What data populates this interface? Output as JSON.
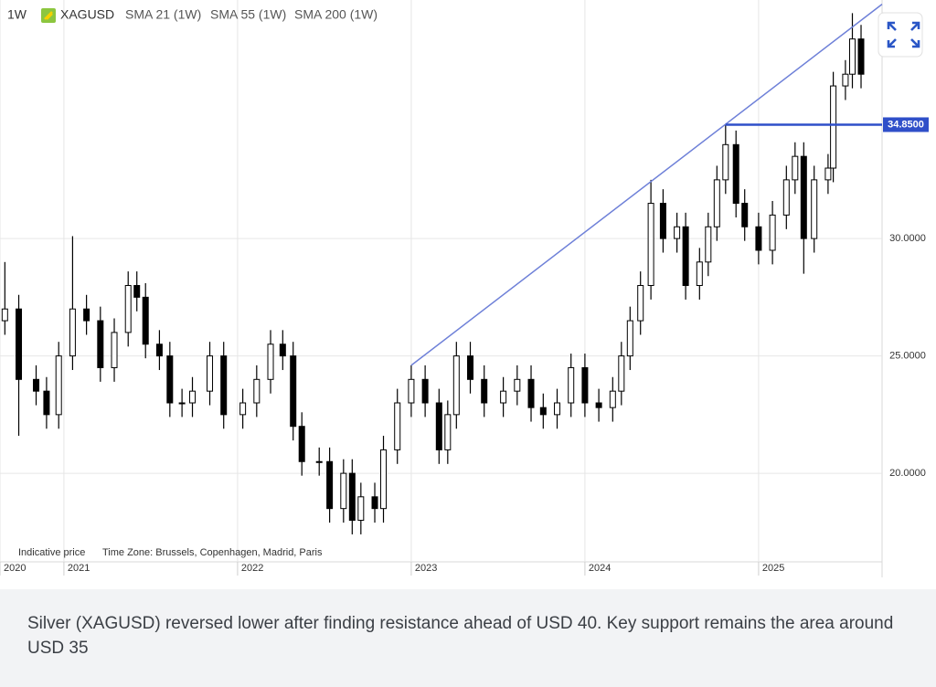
{
  "chart_data": {
    "type": "candlestick",
    "interval": "1W",
    "symbol": "XAGUSD",
    "indicators": [
      "SMA 21 (1W)",
      "SMA 55 (1W)",
      "SMA 200 (1W)"
    ],
    "notes": [
      "Indicative price",
      "Time Zone: Brussels, Copenhagen, Madrid, Paris"
    ],
    "xlim": [
      2020.632,
      2025.711
    ],
    "xticks": [
      {
        "value": 2020.632,
        "label": "2020"
      },
      2021,
      2022,
      2023,
      2024,
      2025
    ],
    "ylim": [
      16.23,
      40.16
    ],
    "yticks": [
      {
        "value": 20,
        "label": "20.0000"
      },
      {
        "value": 25,
        "label": "25.0000"
      },
      {
        "value": 30,
        "label": "30.0000"
      }
    ],
    "grid": true,
    "up_color": "#ffffff",
    "down_color": "#000000",
    "x": [
      2020.66,
      2020.74,
      2020.84,
      2020.9,
      2020.97,
      2021.05,
      2021.13,
      2021.21,
      2021.29,
      2021.37,
      2021.42,
      2021.47,
      2021.55,
      2021.61,
      2021.68,
      2021.74,
      2021.84,
      2021.92,
      2022.03,
      2022.11,
      2022.19,
      2022.26,
      2022.32,
      2022.37,
      2022.47,
      2022.53,
      2022.61,
      2022.66,
      2022.71,
      2022.79,
      2022.84,
      2022.92,
      2023.0,
      2023.08,
      2023.16,
      2023.21,
      2023.26,
      2023.34,
      2023.42,
      2023.53,
      2023.61,
      2023.69,
      2023.76,
      2023.84,
      2023.92,
      2024.0,
      2024.08,
      2024.16,
      2024.21,
      2024.26,
      2024.32,
      2024.38,
      2024.45,
      2024.53,
      2024.58,
      2024.66,
      2024.71,
      2024.76,
      2024.81,
      2024.87,
      2024.92,
      2025.0,
      2025.08,
      2025.16,
      2025.21,
      2025.26,
      2025.32,
      2025.4,
      2025.43,
      2025.5,
      2025.54,
      2025.59
    ],
    "open": [
      26.5,
      27,
      24,
      23.5,
      22.5,
      25,
      27,
      26.5,
      24.5,
      26,
      28,
      27.5,
      25.5,
      25,
      23,
      23,
      23.5,
      25,
      22.5,
      23,
      24,
      25.5,
      25,
      22,
      20.5,
      20.5,
      18.5,
      20,
      18,
      19,
      18.5,
      21,
      23,
      24,
      23,
      21,
      22.5,
      25,
      24,
      23,
      23.5,
      24,
      22.8,
      22.5,
      23,
      24.5,
      23,
      22.8,
      23.5,
      25,
      26.5,
      28,
      31.5,
      30,
      30.5,
      28,
      29,
      30.5,
      32.5,
      34,
      31.5,
      30.5,
      29.5,
      31,
      32.5,
      33.5,
      30,
      32.5,
      33,
      36.5,
      37,
      38.5
    ],
    "high": [
      29,
      27.6,
      24.6,
      24.1,
      25.6,
      30.1,
      27.6,
      27.1,
      26.6,
      28.6,
      28.6,
      28.1,
      26.1,
      25.6,
      23.6,
      24.1,
      25.6,
      25.6,
      23.6,
      24.6,
      26.1,
      26.1,
      25.6,
      22.6,
      21.1,
      21.1,
      20.6,
      20.6,
      19.6,
      19.6,
      21.6,
      23.6,
      24.6,
      24.6,
      23.6,
      23.1,
      25.6,
      25.6,
      24.6,
      24.1,
      24.6,
      24.6,
      23.4,
      23.6,
      25.1,
      25.1,
      23.6,
      24.1,
      25.6,
      27.1,
      28.6,
      32.5,
      32.1,
      31.1,
      31.1,
      29.6,
      31.1,
      33.1,
      34.85,
      34.6,
      32.1,
      31.1,
      31.6,
      33.1,
      34.1,
      34.1,
      33.1,
      33.6,
      37.1,
      37.6,
      39.6,
      39.1
    ],
    "low": [
      25.9,
      21.6,
      22.9,
      21.9,
      21.9,
      24.4,
      25.9,
      23.9,
      23.9,
      25.4,
      26.9,
      24.9,
      24.4,
      22.4,
      22.4,
      22.4,
      22.9,
      21.9,
      21.9,
      22.4,
      23.4,
      24.4,
      21.4,
      19.9,
      19.9,
      17.9,
      17.9,
      17.4,
      17.4,
      17.9,
      17.9,
      20.4,
      22.4,
      22.4,
      20.4,
      20.4,
      21.9,
      23.4,
      22.4,
      22.4,
      22.9,
      22.2,
      21.9,
      21.9,
      22.4,
      22.4,
      22.2,
      22.2,
      22.9,
      24.4,
      25.9,
      27.4,
      29.4,
      29.4,
      27.4,
      27.4,
      28.4,
      29.9,
      31.9,
      30.9,
      29.9,
      28.9,
      28.9,
      30.4,
      31.9,
      28.5,
      29.4,
      31.9,
      32.4,
      35.9,
      36.4,
      36.4
    ],
    "close": [
      27,
      24,
      23.5,
      22.5,
      25,
      27,
      26.5,
      24.5,
      26,
      28,
      27.5,
      25.5,
      25,
      23,
      23,
      23.5,
      25,
      22.5,
      23,
      24,
      25.5,
      25,
      22,
      20.5,
      20.5,
      18.5,
      20,
      18,
      19,
      18.5,
      21,
      23,
      24,
      23,
      21,
      22.5,
      25,
      24,
      23,
      23.5,
      24,
      22.8,
      22.5,
      23,
      24.5,
      23,
      22.8,
      23.5,
      25,
      26.5,
      28,
      31.5,
      30,
      30.5,
      28,
      29,
      30.5,
      32.5,
      34,
      31.5,
      30.5,
      29.5,
      31,
      32.5,
      33.5,
      30,
      32.5,
      33,
      36.5,
      37,
      38.5,
      37
    ],
    "trendline": {
      "x": [
        2023.0,
        2025.711
      ],
      "y": [
        24.6,
        39.98
      ],
      "color": "#6e80d8"
    },
    "level": {
      "value": 34.85,
      "label": "34.8500",
      "x_start": 2024.81,
      "color": "#2f4fc9"
    }
  },
  "caption": "Silver (XAGUSD) reversed lower after finding resistance ahead of USD 40. Key support remains the area around USD 35"
}
